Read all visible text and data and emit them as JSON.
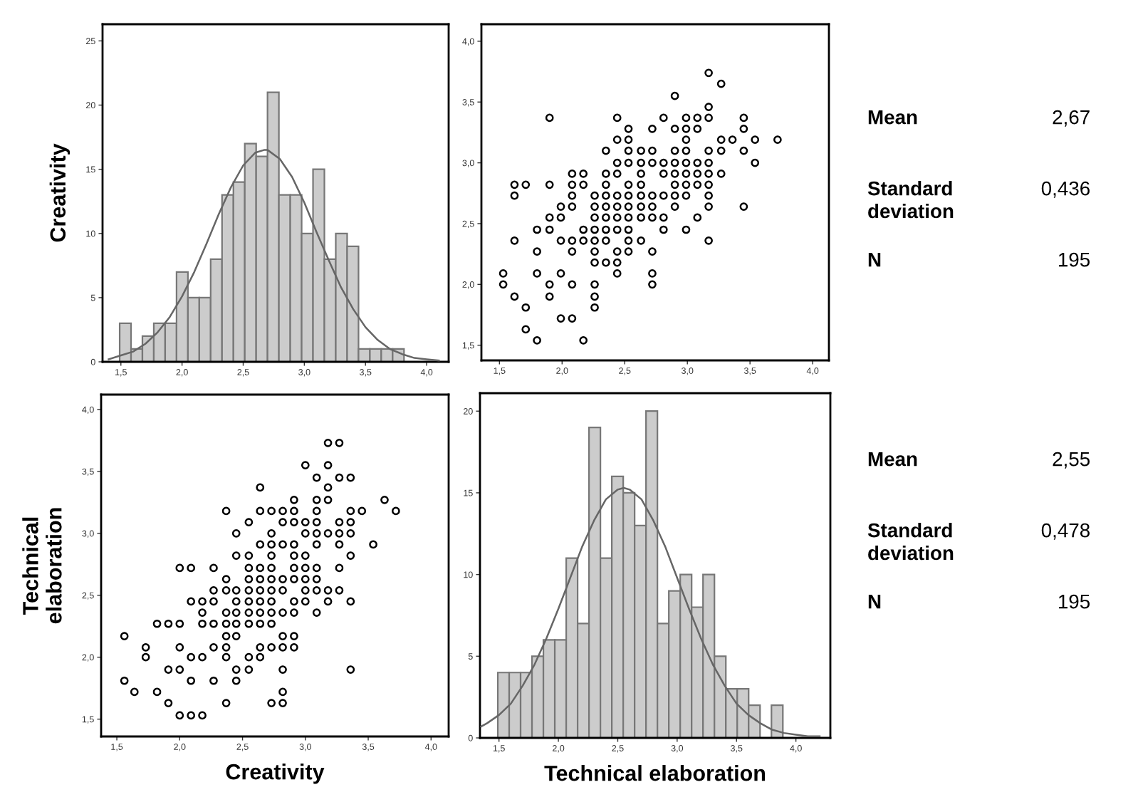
{
  "chart_data": [
    {
      "type": "histogram",
      "ylabel": "Creativity",
      "color": "#cccccc",
      "bins": [
        1.49,
        1.583,
        1.676,
        1.769,
        1.862,
        1.955,
        2.048,
        2.141,
        2.234,
        2.327,
        2.42,
        2.513,
        2.606,
        2.699,
        2.792,
        2.885,
        2.978,
        3.071,
        3.164,
        3.257,
        3.35,
        3.443,
        3.536,
        3.629,
        3.722,
        3.815
      ],
      "values": [
        3,
        1,
        2,
        3,
        3,
        7,
        5,
        5,
        8,
        13,
        14,
        17,
        16,
        21,
        13,
        13,
        10,
        15,
        8,
        10,
        9,
        1,
        1,
        1,
        1
      ],
      "series": [
        {
          "type": "line",
          "color": "#666666",
          "x": [
            1.4,
            1.5,
            1.6,
            1.7,
            1.8,
            1.9,
            2.0,
            2.1,
            2.2,
            2.3,
            2.4,
            2.5,
            2.6,
            2.67,
            2.7,
            2.8,
            2.9,
            3.0,
            3.1,
            3.2,
            3.3,
            3.4,
            3.5,
            3.6,
            3.7,
            3.8,
            3.9,
            4.0,
            4.1
          ],
          "values": [
            0.2,
            0.5,
            0.8,
            1.4,
            2.3,
            3.5,
            5.1,
            7.0,
            9.2,
            11.5,
            13.6,
            15.3,
            16.3,
            16.5,
            16.5,
            15.8,
            14.4,
            12.4,
            10.1,
            7.9,
            5.8,
            4.1,
            2.7,
            1.7,
            1.0,
            0.6,
            0.3,
            0.2,
            0.1
          ]
        }
      ],
      "xlim": [
        1.35,
        4.18
      ],
      "ylim": [
        0,
        26.3
      ],
      "xticks": [
        {
          "value": 1.5,
          "label": "1,5"
        },
        {
          "value": 2.0,
          "label": "2,0"
        },
        {
          "value": 2.5,
          "label": "2,5"
        },
        {
          "value": 3.0,
          "label": "3,0"
        },
        {
          "value": 3.5,
          "label": "3,5"
        },
        {
          "value": 4.0,
          "label": "4,0"
        }
      ],
      "yticks": [
        0,
        5,
        10,
        15,
        20,
        25
      ]
    },
    {
      "type": "scatter",
      "color": "#000000",
      "marker": "circle",
      "x": [
        3.17,
        3.27,
        2.9,
        3.17,
        1.9,
        2.44,
        2.81,
        2.99,
        3.08,
        3.17,
        3.45,
        2.53,
        2.72,
        2.9,
        2.99,
        3.08,
        3.45,
        2.44,
        2.53,
        2.99,
        3.27,
        3.36,
        3.54,
        3.72,
        2.35,
        2.53,
        2.63,
        2.72,
        2.9,
        2.99,
        3.17,
        3.27,
        3.45,
        2.44,
        2.53,
        2.63,
        2.72,
        2.81,
        2.9,
        2.99,
        3.08,
        3.17,
        3.54,
        2.08,
        2.17,
        2.35,
        2.44,
        2.63,
        2.81,
        2.9,
        2.99,
        3.08,
        3.17,
        3.27,
        1.62,
        1.71,
        1.9,
        2.08,
        2.17,
        2.35,
        2.53,
        2.63,
        2.9,
        2.99,
        3.08,
        3.17,
        1.62,
        2.08,
        2.26,
        2.35,
        2.44,
        2.53,
        2.63,
        2.72,
        2.81,
        2.9,
        2.99,
        3.17,
        1.99,
        2.08,
        2.26,
        2.35,
        2.44,
        2.53,
        2.63,
        2.72,
        2.9,
        3.17,
        3.45,
        1.9,
        1.99,
        2.26,
        2.35,
        2.44,
        2.53,
        2.63,
        2.72,
        2.81,
        3.08,
        1.8,
        1.9,
        2.17,
        2.26,
        2.35,
        2.44,
        2.53,
        2.81,
        2.99,
        1.62,
        1.99,
        2.08,
        2.17,
        2.26,
        2.35,
        2.53,
        2.63,
        3.17,
        1.8,
        2.08,
        2.26,
        2.44,
        2.53,
        2.72,
        2.26,
        2.35,
        2.44,
        1.53,
        1.8,
        1.99,
        2.44,
        2.72,
        1.53,
        1.9,
        2.08,
        2.26,
        2.72,
        1.62,
        1.9,
        2.26,
        1.71,
        2.26,
        1.99,
        2.08,
        1.71,
        1.8,
        2.17
      ],
      "values": [
        3.74,
        3.65,
        3.55,
        3.46,
        3.37,
        3.37,
        3.37,
        3.37,
        3.37,
        3.37,
        3.37,
        3.28,
        3.28,
        3.28,
        3.28,
        3.28,
        3.28,
        3.19,
        3.19,
        3.19,
        3.19,
        3.19,
        3.19,
        3.19,
        3.1,
        3.1,
        3.1,
        3.1,
        3.1,
        3.1,
        3.1,
        3.1,
        3.1,
        3.0,
        3.0,
        3.0,
        3.0,
        3.0,
        3.0,
        3.0,
        3.0,
        3.0,
        3.0,
        2.91,
        2.91,
        2.91,
        2.91,
        2.91,
        2.91,
        2.91,
        2.91,
        2.91,
        2.91,
        2.91,
        2.82,
        2.82,
        2.82,
        2.82,
        2.82,
        2.82,
        2.82,
        2.82,
        2.82,
        2.82,
        2.82,
        2.82,
        2.73,
        2.73,
        2.73,
        2.73,
        2.73,
        2.73,
        2.73,
        2.73,
        2.73,
        2.73,
        2.73,
        2.73,
        2.64,
        2.64,
        2.64,
        2.64,
        2.64,
        2.64,
        2.64,
        2.64,
        2.64,
        2.64,
        2.64,
        2.55,
        2.55,
        2.55,
        2.55,
        2.55,
        2.55,
        2.55,
        2.55,
        2.55,
        2.55,
        2.45,
        2.45,
        2.45,
        2.45,
        2.45,
        2.45,
        2.45,
        2.45,
        2.45,
        2.36,
        2.36,
        2.36,
        2.36,
        2.36,
        2.36,
        2.36,
        2.36,
        2.36,
        2.27,
        2.27,
        2.27,
        2.27,
        2.27,
        2.27,
        2.18,
        2.18,
        2.18,
        2.09,
        2.09,
        2.09,
        2.09,
        2.09,
        2.0,
        2.0,
        2.0,
        2.0,
        2.0,
        1.9,
        1.9,
        1.9,
        1.81,
        1.81,
        1.72,
        1.72,
        1.63,
        1.54,
        1.54
      ],
      "xlim": [
        1.356,
        4.13
      ],
      "ylim": [
        1.375,
        4.14
      ],
      "xticks": [
        {
          "value": 1.5,
          "label": "1,5"
        },
        {
          "value": 2.0,
          "label": "2,0"
        },
        {
          "value": 2.5,
          "label": "2,5"
        },
        {
          "value": 3.0,
          "label": "3,0"
        },
        {
          "value": 3.5,
          "label": "3,5"
        },
        {
          "value": 4.0,
          "label": "4,0"
        }
      ],
      "yticks": [
        {
          "value": 1.5,
          "label": "1,5"
        },
        {
          "value": 2.0,
          "label": "2,0"
        },
        {
          "value": 2.5,
          "label": "2,5"
        },
        {
          "value": 3.0,
          "label": "3,0"
        },
        {
          "value": 3.5,
          "label": "3,5"
        },
        {
          "value": 4.0,
          "label": "4,0"
        }
      ]
    },
    {
      "type": "other",
      "annotations": [
        "Mean",
        "2,67",
        "Standard\ndeviation",
        "0,436",
        "N",
        "195"
      ]
    },
    {
      "type": "scatter",
      "color": "#000000",
      "marker": "circle",
      "xlabel": "Creativity",
      "ylabel": "Technical\nelaboration",
      "x": [
        3.18,
        3.27,
        3.0,
        3.18,
        3.09,
        3.27,
        3.36,
        2.64,
        3.18,
        2.91,
        3.09,
        3.18,
        3.63,
        2.37,
        2.64,
        2.73,
        2.82,
        2.91,
        3.09,
        3.36,
        3.45,
        3.72,
        2.55,
        2.82,
        2.91,
        3.0,
        3.09,
        3.27,
        3.36,
        2.45,
        2.73,
        3.0,
        3.09,
        3.18,
        3.27,
        3.36,
        2.64,
        2.73,
        2.82,
        2.91,
        3.09,
        3.27,
        3.54,
        2.45,
        2.55,
        2.73,
        2.91,
        3.0,
        3.36,
        2.0,
        2.09,
        2.27,
        2.55,
        2.64,
        2.73,
        2.91,
        3.0,
        3.09,
        3.27,
        2.37,
        2.55,
        2.64,
        2.73,
        2.82,
        2.91,
        3.0,
        3.09,
        2.27,
        2.37,
        2.45,
        2.55,
        2.64,
        2.73,
        2.82,
        3.0,
        3.09,
        3.18,
        3.27,
        2.09,
        2.18,
        2.27,
        2.45,
        2.55,
        2.64,
        2.73,
        2.91,
        3.0,
        3.18,
        3.36,
        2.18,
        2.37,
        2.45,
        2.55,
        2.64,
        2.73,
        2.82,
        2.91,
        3.09,
        1.82,
        1.91,
        2.0,
        2.18,
        2.27,
        2.37,
        2.45,
        2.55,
        2.64,
        2.73,
        1.56,
        2.37,
        2.45,
        2.82,
        2.91,
        1.73,
        2.0,
        2.27,
        2.37,
        2.64,
        2.73,
        2.82,
        2.91,
        1.73,
        2.09,
        2.18,
        2.37,
        2.55,
        2.64,
        1.91,
        2.0,
        2.45,
        2.55,
        2.82,
        3.36,
        1.56,
        2.09,
        2.27,
        2.45,
        1.64,
        1.82,
        2.82,
        1.91,
        2.37,
        2.73,
        2.82,
        2.0,
        2.09,
        2.18
      ],
      "values": [
        3.73,
        3.73,
        3.55,
        3.55,
        3.45,
        3.45,
        3.45,
        3.37,
        3.37,
        3.27,
        3.27,
        3.27,
        3.27,
        3.18,
        3.18,
        3.18,
        3.18,
        3.18,
        3.18,
        3.18,
        3.18,
        3.18,
        3.09,
        3.09,
        3.09,
        3.09,
        3.09,
        3.09,
        3.09,
        3.0,
        3.0,
        3.0,
        3.0,
        3.0,
        3.0,
        3.0,
        2.91,
        2.91,
        2.91,
        2.91,
        2.91,
        2.91,
        2.91,
        2.82,
        2.82,
        2.82,
        2.82,
        2.82,
        2.82,
        2.72,
        2.72,
        2.72,
        2.72,
        2.72,
        2.72,
        2.72,
        2.72,
        2.72,
        2.72,
        2.63,
        2.63,
        2.63,
        2.63,
        2.63,
        2.63,
        2.63,
        2.63,
        2.54,
        2.54,
        2.54,
        2.54,
        2.54,
        2.54,
        2.54,
        2.54,
        2.54,
        2.54,
        2.54,
        2.45,
        2.45,
        2.45,
        2.45,
        2.45,
        2.45,
        2.45,
        2.45,
        2.45,
        2.45,
        2.45,
        2.36,
        2.36,
        2.36,
        2.36,
        2.36,
        2.36,
        2.36,
        2.36,
        2.36,
        2.27,
        2.27,
        2.27,
        2.27,
        2.27,
        2.27,
        2.27,
        2.27,
        2.27,
        2.27,
        2.17,
        2.17,
        2.17,
        2.17,
        2.17,
        2.08,
        2.08,
        2.08,
        2.08,
        2.08,
        2.08,
        2.08,
        2.08,
        2.0,
        2.0,
        2.0,
        2.0,
        2.0,
        2.0,
        1.9,
        1.9,
        1.9,
        1.9,
        1.9,
        1.9,
        1.81,
        1.81,
        1.81,
        1.81,
        1.72,
        1.72,
        1.72,
        1.63,
        1.63,
        1.63,
        1.63,
        1.53,
        1.53,
        1.53
      ],
      "xlim": [
        1.375,
        4.14
      ],
      "ylim": [
        1.36,
        4.12
      ],
      "xticks": [
        {
          "value": 1.5,
          "label": "1,5"
        },
        {
          "value": 2.0,
          "label": "2,0"
        },
        {
          "value": 2.5,
          "label": "2,5"
        },
        {
          "value": 3.0,
          "label": "3,0"
        },
        {
          "value": 3.5,
          "label": "3,5"
        },
        {
          "value": 4.0,
          "label": "4,0"
        }
      ],
      "yticks": [
        {
          "value": 1.5,
          "label": "1,5"
        },
        {
          "value": 2.0,
          "label": "2,0"
        },
        {
          "value": 2.5,
          "label": "2,5"
        },
        {
          "value": 3.0,
          "label": "3,0"
        },
        {
          "value": 3.5,
          "label": "3,5"
        },
        {
          "value": 4.0,
          "label": "4,0"
        }
      ]
    },
    {
      "type": "histogram",
      "xlabel": "Technical elaboration",
      "color": "#cccccc",
      "bins": [
        1.49,
        1.586,
        1.682,
        1.778,
        1.874,
        1.97,
        2.066,
        2.162,
        2.258,
        2.354,
        2.45,
        2.546,
        2.642,
        2.738,
        2.834,
        2.93,
        3.026,
        3.122,
        3.218,
        3.314,
        3.41,
        3.506,
        3.602,
        3.698,
        3.794,
        3.89
      ],
      "values": [
        4,
        4,
        4,
        5,
        6,
        6,
        11,
        7,
        19,
        11,
        16,
        15,
        13,
        20,
        7,
        9,
        10,
        8,
        10,
        5,
        3,
        3,
        2,
        0,
        2
      ],
      "series": [
        {
          "type": "line",
          "color": "#666666",
          "x": [
            1.35,
            1.4,
            1.5,
            1.6,
            1.7,
            1.8,
            1.9,
            2.0,
            2.1,
            2.2,
            2.3,
            2.4,
            2.5,
            2.55,
            2.6,
            2.7,
            2.8,
            2.9,
            3.0,
            3.1,
            3.2,
            3.3,
            3.4,
            3.5,
            3.6,
            3.7,
            3.8,
            3.9,
            4.0,
            4.1,
            4.2
          ],
          "values": [
            0.7,
            0.9,
            1.4,
            2.1,
            3.2,
            4.5,
            6.1,
            7.9,
            9.8,
            11.7,
            13.3,
            14.6,
            15.2,
            15.3,
            15.2,
            14.6,
            13.3,
            11.7,
            9.8,
            7.9,
            6.1,
            4.5,
            3.2,
            2.1,
            1.4,
            0.9,
            0.5,
            0.3,
            0.2,
            0.1,
            0.1
          ]
        }
      ],
      "xlim": [
        1.34,
        4.29
      ],
      "ylim": [
        0,
        21.1
      ],
      "xticks": [
        {
          "value": 1.5,
          "label": "1,5"
        },
        {
          "value": 2.0,
          "label": "2,0"
        },
        {
          "value": 2.5,
          "label": "2,5"
        },
        {
          "value": 3.0,
          "label": "3,0"
        },
        {
          "value": 3.5,
          "label": "3,5"
        },
        {
          "value": 4.0,
          "label": "4,0"
        }
      ],
      "yticks": [
        0,
        5,
        10,
        15,
        20
      ]
    },
    {
      "type": "other",
      "annotations": [
        "Mean",
        "2,55",
        "Standard\ndeviation",
        "0,478",
        "N",
        "195"
      ]
    }
  ]
}
